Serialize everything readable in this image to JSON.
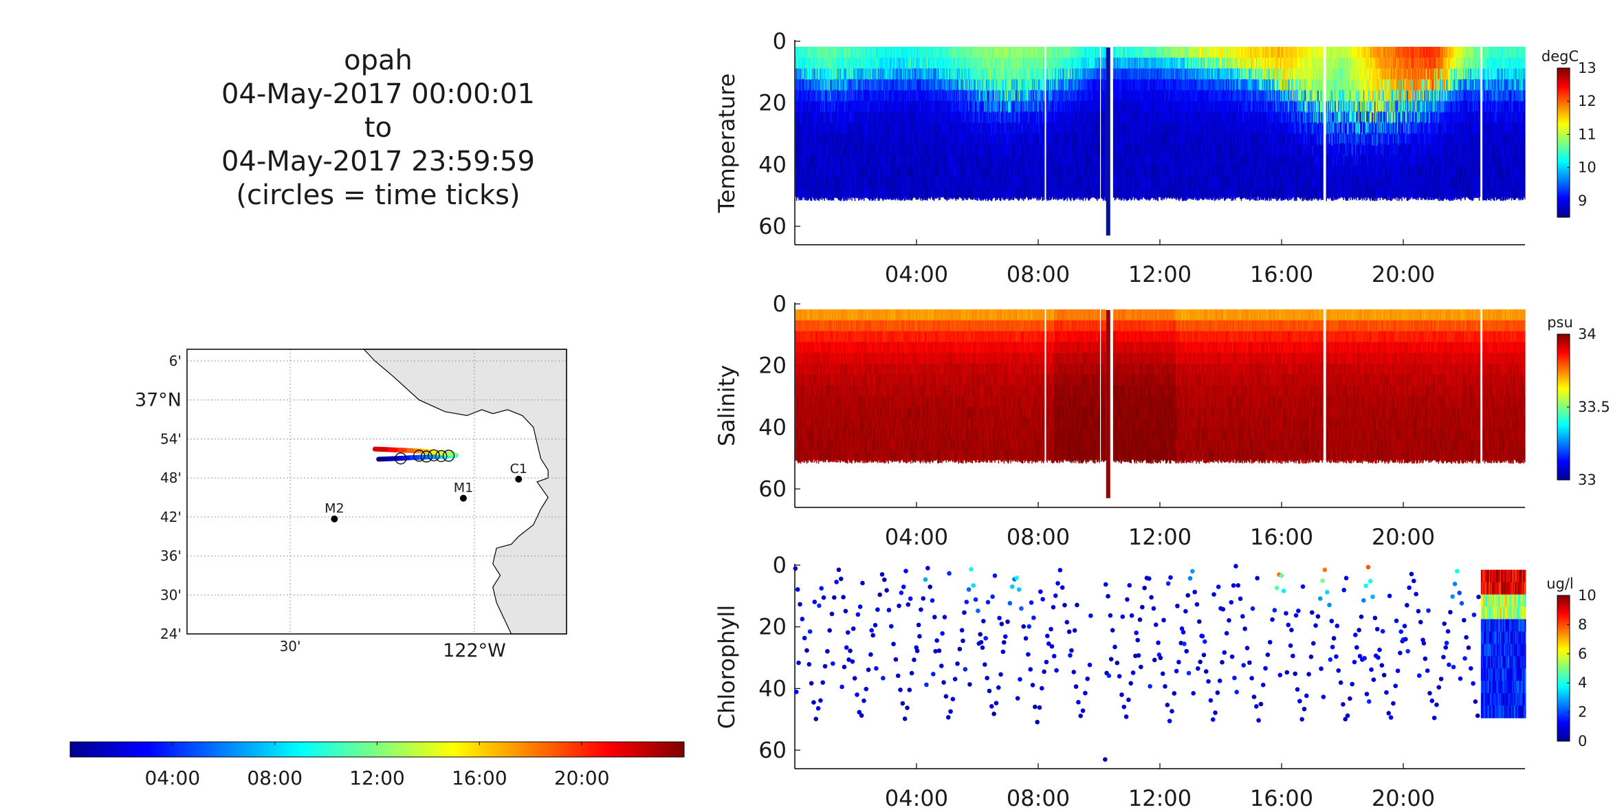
{
  "title": {
    "line1": "opah",
    "line2": "04-May-2017 00:00:01",
    "line3": "to",
    "line4": "04-May-2017 23:59:59",
    "line5": "(circles = time ticks)"
  },
  "chart_data": [
    {
      "type": "map",
      "lat_ticks": [
        "24'",
        "30'",
        "36'",
        "42'",
        "48'",
        "54'",
        "37°N",
        "6'"
      ],
      "lat_values": [
        36.4,
        36.5,
        36.6,
        36.7,
        36.8,
        36.9,
        37.0,
        37.1
      ],
      "lon_ticks": [
        "30'",
        "122°W"
      ],
      "lon_values": [
        -122.5,
        -122.0
      ],
      "xlim": [
        -122.78,
        -121.75
      ],
      "ylim": [
        36.4,
        37.13
      ],
      "grid": true,
      "stations": [
        {
          "label": "M2",
          "lon": -122.38,
          "lat": 36.695
        },
        {
          "label": "M1",
          "lon": -122.03,
          "lat": 36.748
        },
        {
          "label": "C1",
          "lon": -121.88,
          "lat": 36.797
        }
      ],
      "track": {
        "lon": [
          -122.26,
          -122.235,
          -122.21,
          -122.19,
          -122.17,
          -122.145,
          -122.12,
          -122.1,
          -122.08,
          -122.06,
          -122.05,
          -122.055,
          -122.07,
          -122.09,
          -122.11,
          -122.13,
          -122.15,
          -122.17,
          -122.19,
          -122.215,
          -122.24,
          -122.27
        ],
        "lat": [
          36.848,
          36.849,
          36.85,
          36.851,
          36.852,
          36.853,
          36.854,
          36.855,
          36.856,
          36.857,
          36.858,
          36.86,
          36.862,
          36.864,
          36.866,
          36.868,
          36.869,
          36.87,
          36.871,
          36.872,
          36.873,
          36.874
        ],
        "time_h": [
          0,
          1.1,
          2.2,
          3.3,
          4.4,
          5.5,
          6.6,
          7.7,
          8.8,
          9.9,
          11,
          12.1,
          13.2,
          14.3,
          15.4,
          16.5,
          17.6,
          18.7,
          19.8,
          20.9,
          22,
          23.5
        ]
      },
      "time_tick_circles": [
        {
          "lon": -122.2,
          "lat": 36.85
        },
        {
          "lon": -122.13,
          "lat": 36.855
        },
        {
          "lon": -122.09,
          "lat": 36.856
        },
        {
          "lon": -122.15,
          "lat": 36.857
        },
        {
          "lon": -122.11,
          "lat": 36.858
        },
        {
          "lon": -122.07,
          "lat": 36.857
        }
      ]
    },
    {
      "type": "colorbar",
      "colormap": "jet",
      "tick_labels": [
        "04:00",
        "08:00",
        "12:00",
        "16:00",
        "20:00"
      ],
      "range_h": [
        0,
        24
      ]
    },
    {
      "type": "heatmap",
      "ylabel": "Temperature",
      "units": "degC",
      "x_tick_labels": [
        "04:00",
        "08:00",
        "12:00",
        "16:00",
        "20:00"
      ],
      "x_tick_hours": [
        4,
        8,
        12,
        16,
        20
      ],
      "y_tick_labels": [
        "0",
        "20",
        "40",
        "60"
      ],
      "y_ticks": [
        0,
        20,
        40,
        60
      ],
      "ylim": [
        0,
        66
      ],
      "xlim_h": [
        0,
        24
      ],
      "max_depth": 51,
      "clim": [
        8.5,
        13
      ],
      "cbar_ticks": [
        9,
        10,
        11,
        12,
        13
      ],
      "surface_values_by_hour": [
        10.6,
        10.8,
        10.7,
        10.5,
        10.6,
        10.7,
        10.9,
        11.0,
        10.9,
        10.8,
        10.5,
        10.7,
        11.0,
        11.3,
        11.6,
        11.7,
        11.8,
        11.4,
        11.0,
        11.8,
        12.2,
        12.4,
        11.2,
        10.6
      ],
      "deep_value": 8.8,
      "mixed_layer_depth_by_hour": [
        6,
        10,
        8,
        7,
        6,
        8,
        12,
        14,
        12,
        8,
        4,
        3,
        3,
        4,
        5,
        7,
        10,
        16,
        20,
        18,
        16,
        12,
        8,
        10
      ],
      "gap_intervals_h": [
        [
          8.18,
          8.25
        ],
        [
          10.0,
          10.05
        ],
        [
          10.2,
          10.45
        ],
        [
          17.35,
          17.45
        ],
        [
          22.5,
          22.58
        ]
      ],
      "deep_cast": {
        "hour": 10.3,
        "depth": 63
      }
    },
    {
      "type": "heatmap",
      "ylabel": "Salinity",
      "units": "psu",
      "x_tick_labels": [
        "04:00",
        "08:00",
        "12:00",
        "16:00",
        "20:00"
      ],
      "x_tick_hours": [
        4,
        8,
        12,
        16,
        20
      ],
      "y_tick_labels": [
        "0",
        "20",
        "40",
        "60"
      ],
      "y_ticks": [
        0,
        20,
        40,
        60
      ],
      "ylim": [
        0,
        66
      ],
      "xlim_h": [
        0,
        24
      ],
      "max_depth": 51,
      "clim": [
        33,
        34
      ],
      "cbar_ticks": [
        33,
        33.5,
        34
      ],
      "cbar_tick_labels": [
        "33",
        "33.5",
        "34"
      ],
      "surface_value": 33.62,
      "deep_value": 33.97,
      "gap_intervals_h": [
        [
          8.18,
          8.25
        ],
        [
          10.0,
          10.05
        ],
        [
          10.2,
          10.45
        ],
        [
          17.35,
          17.45
        ],
        [
          22.5,
          22.58
        ]
      ],
      "deep_cast": {
        "hour": 10.3,
        "depth": 63
      }
    },
    {
      "type": "scatter",
      "ylabel": "Chlorophyll",
      "units": "ug/l",
      "x_tick_labels": [
        "04:00",
        "08:00",
        "12:00",
        "16:00",
        "20:00"
      ],
      "x_tick_hours": [
        4,
        8,
        12,
        16,
        20
      ],
      "y_tick_labels": [
        "0",
        "20",
        "40",
        "60"
      ],
      "y_ticks": [
        0,
        20,
        40,
        60
      ],
      "ylim": [
        0,
        66
      ],
      "xlim_h": [
        0,
        24
      ],
      "clim": [
        0,
        10
      ],
      "cbar_ticks": [
        0,
        2,
        4,
        6,
        8,
        10
      ],
      "yo_cycle_h": 1.45,
      "max_depth": 50,
      "background_value": 0.5,
      "surface_bloom_hours": [
        [
          4.5,
          7.5,
          3.0
        ],
        [
          15.2,
          19.5,
          5.0
        ],
        [
          20.5,
          22.5,
          3.0
        ]
      ],
      "dense_block_hours": [
        22.55,
        24
      ],
      "outlier": {
        "hour": 10.2,
        "depth": 63
      }
    }
  ]
}
